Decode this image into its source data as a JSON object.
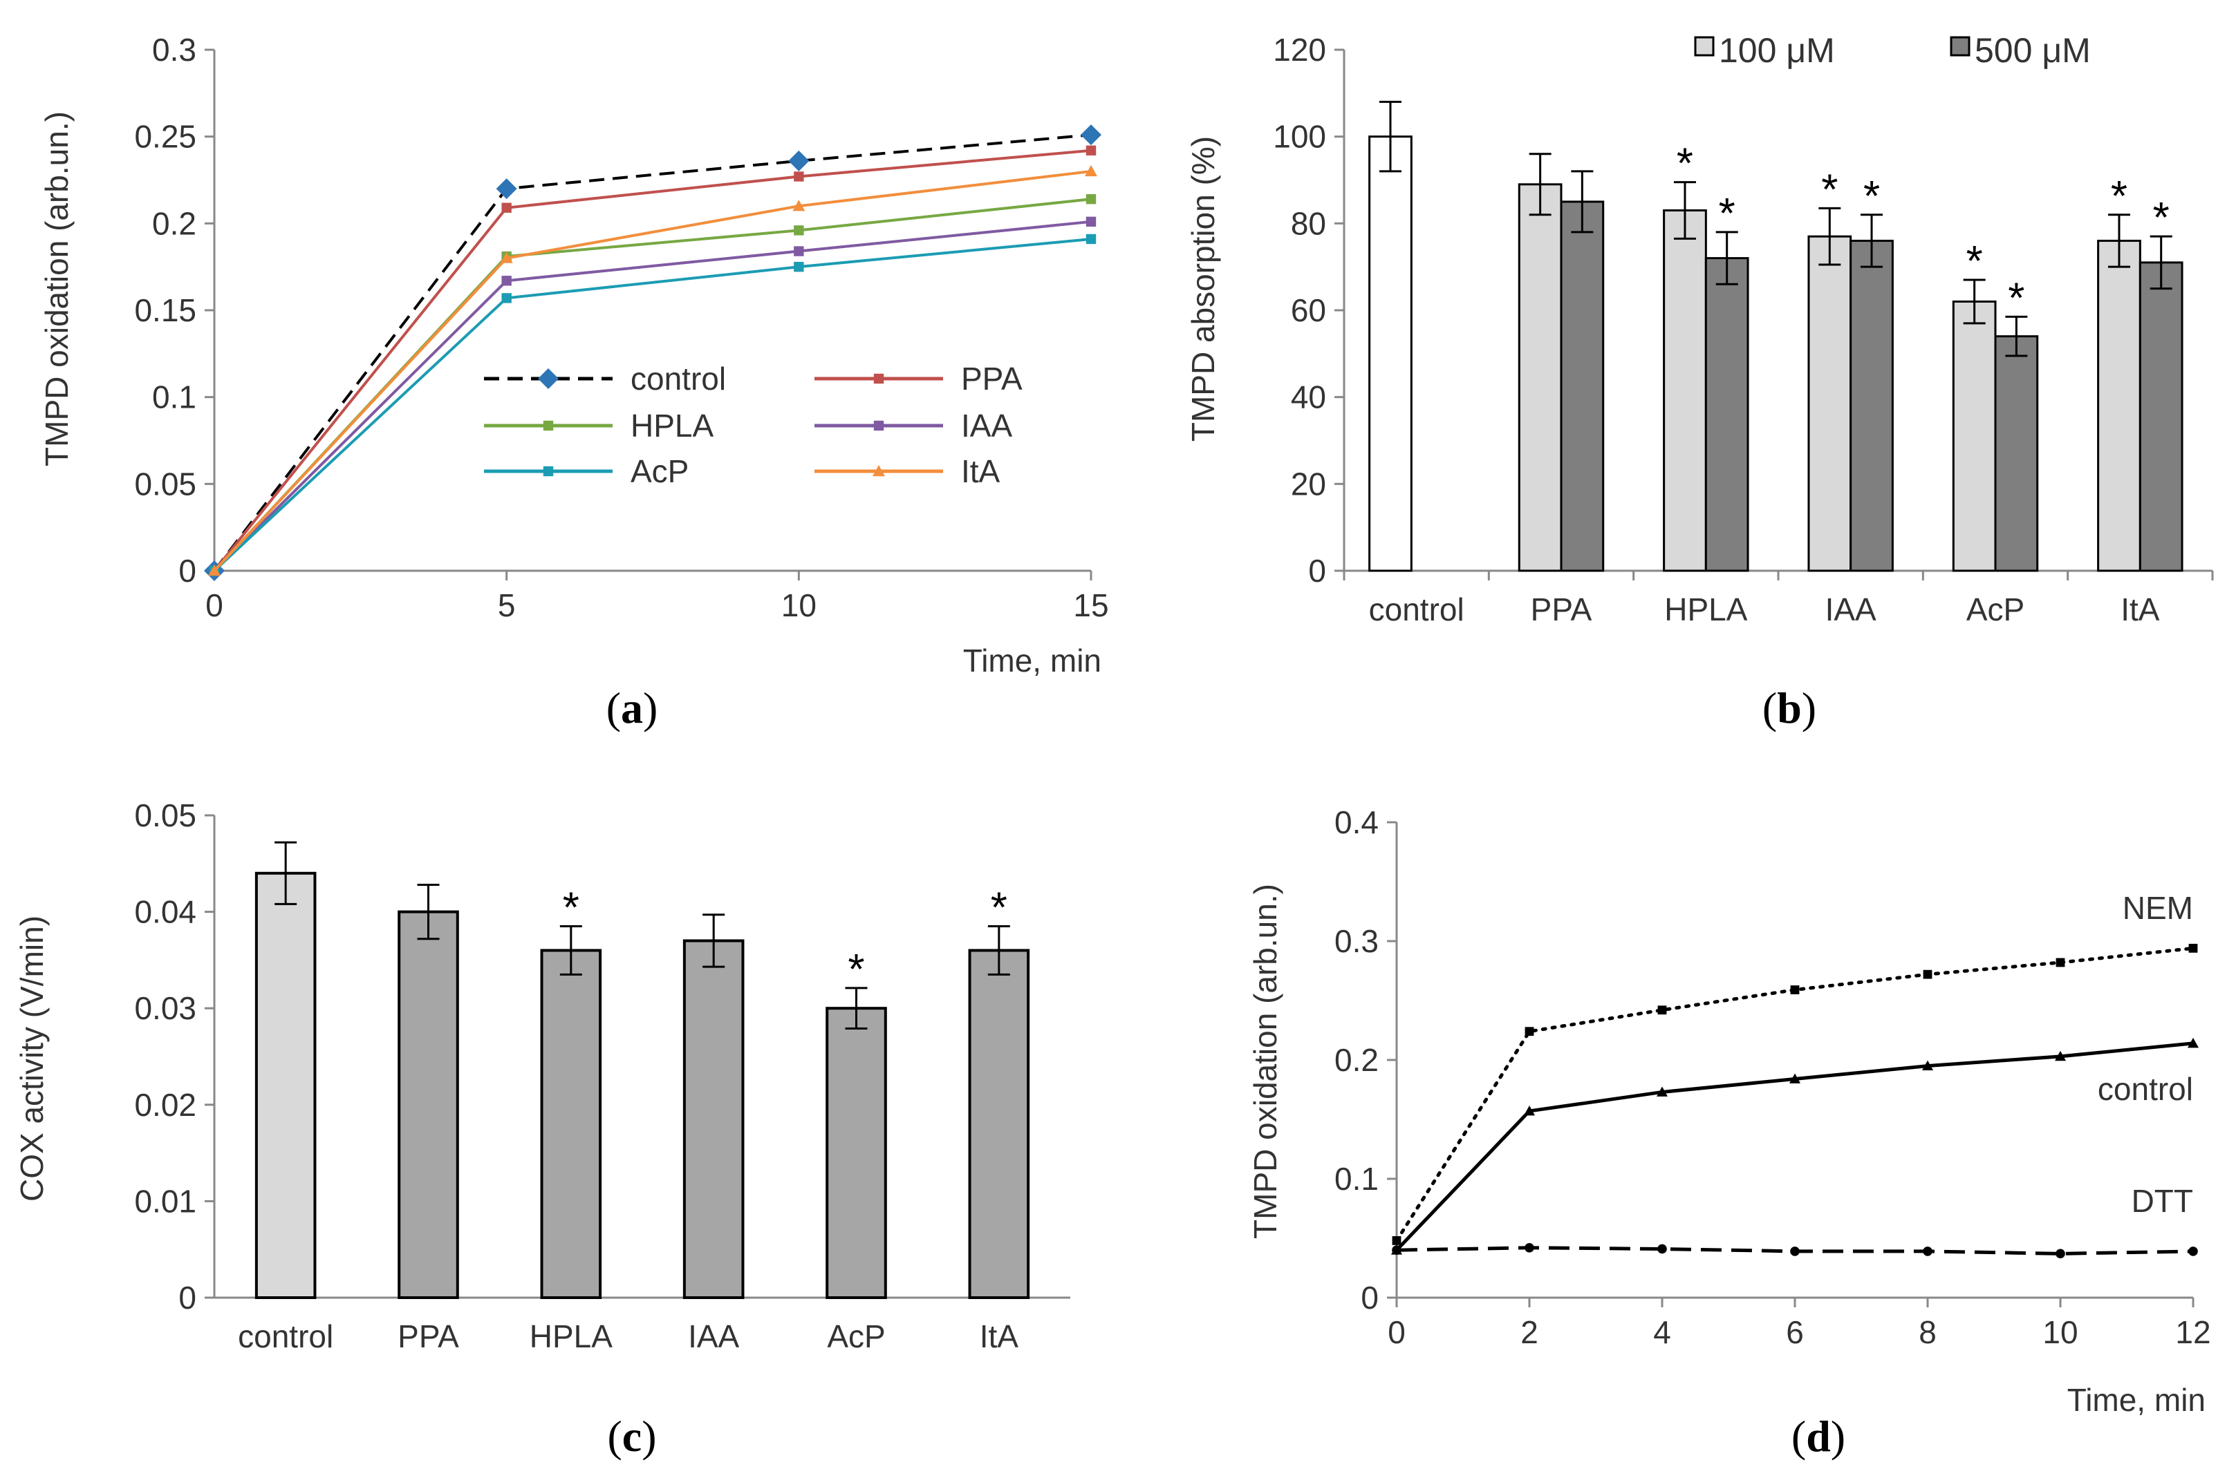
{
  "chart_data": [
    {
      "panel": "a",
      "type": "line",
      "panel_label": {
        "open": "(",
        "letter": "a",
        "close": ")"
      },
      "xlabel": "Time, min",
      "ylabel": "TMPD oxidation (arb.un.)",
      "xlim": [
        0,
        15
      ],
      "ylim": [
        0,
        0.3
      ],
      "xticks": [
        0,
        5,
        10,
        15
      ],
      "yticks": [
        0,
        0.05,
        0.1,
        0.15,
        0.2,
        0.25,
        0.3
      ],
      "x": [
        0,
        5,
        10,
        15
      ],
      "legend_position": "center",
      "series": [
        {
          "name": "control",
          "values": [
            0,
            0.22,
            0.236,
            0.251
          ],
          "color": "#000000",
          "dash": "dashed",
          "marker": "diamond",
          "marker_color": "#2e75b6"
        },
        {
          "name": "PPA",
          "values": [
            0,
            0.209,
            0.227,
            0.242
          ],
          "color": "#c0504d",
          "dash": "solid",
          "marker": "square"
        },
        {
          "name": "HPLA",
          "values": [
            0,
            0.181,
            0.196,
            0.214
          ],
          "color": "#77a843",
          "dash": "solid",
          "marker": "square"
        },
        {
          "name": "IAA",
          "values": [
            0,
            0.167,
            0.184,
            0.201
          ],
          "color": "#7f5aa2",
          "dash": "solid",
          "marker": "square"
        },
        {
          "name": "AcP",
          "values": [
            0,
            0.157,
            0.175,
            0.191
          ],
          "color": "#1b9cb3",
          "dash": "solid",
          "marker": "square"
        },
        {
          "name": "ItA",
          "values": [
            0,
            0.18,
            0.21,
            0.23
          ],
          "color": "#f28e3c",
          "dash": "solid",
          "marker": "triangle"
        }
      ]
    },
    {
      "panel": "b",
      "type": "bar",
      "panel_label": {
        "open": "(",
        "letter": "b",
        "close": ")"
      },
      "ylabel": "TMPD absorption (%)",
      "ylim": [
        0,
        120
      ],
      "yticks": [
        0,
        20,
        40,
        60,
        80,
        100,
        120
      ],
      "categories": [
        "control",
        "PPA",
        "HPLA",
        "IAA",
        "AcP",
        "ItA"
      ],
      "legend_position": "top-right",
      "control": {
        "value": 100,
        "error": 8,
        "color": "#ffffff"
      },
      "series": [
        {
          "name": "100 μM",
          "color": "#d9d9d9",
          "values": [
            null,
            89,
            83,
            77,
            62,
            76
          ],
          "errors": [
            null,
            7,
            6.5,
            6.5,
            5,
            6
          ],
          "significant": [
            false,
            false,
            true,
            true,
            true,
            true
          ]
        },
        {
          "name": "500 μM",
          "color": "#7f7f7f",
          "values": [
            null,
            85,
            72,
            76,
            54,
            71
          ],
          "errors": [
            null,
            7,
            6,
            6,
            4.5,
            6
          ],
          "significant": [
            false,
            false,
            true,
            true,
            true,
            true
          ]
        }
      ],
      "significance_mark": "*"
    },
    {
      "panel": "c",
      "type": "bar",
      "panel_label": {
        "open": "(",
        "letter": "c",
        "close": ")"
      },
      "ylabel": "COX activity (V/min)",
      "ylim": [
        0,
        0.05
      ],
      "yticks": [
        0,
        0.01,
        0.02,
        0.03,
        0.04,
        0.05
      ],
      "categories": [
        "control",
        "PPA",
        "HPLA",
        "IAA",
        "AcP",
        "ItA"
      ],
      "values": [
        0.044,
        0.04,
        0.036,
        0.037,
        0.03,
        0.036
      ],
      "errors": [
        0.0032,
        0.0028,
        0.0025,
        0.0027,
        0.0021,
        0.0025
      ],
      "significant": [
        false,
        false,
        true,
        false,
        true,
        true
      ],
      "colors": [
        "#d9d9d9",
        "#a6a6a6",
        "#a6a6a6",
        "#a6a6a6",
        "#a6a6a6",
        "#a6a6a6"
      ],
      "significance_mark": "*"
    },
    {
      "panel": "d",
      "type": "line",
      "panel_label": {
        "open": "(",
        "letter": "d",
        "close": ")"
      },
      "xlabel": "Time, min",
      "ylabel": "TMPD oxidation (arb.un.)",
      "xlim": [
        0,
        12
      ],
      "ylim": [
        0,
        0.4
      ],
      "xticks": [
        0,
        2,
        4,
        6,
        8,
        10,
        12
      ],
      "yticks": [
        0,
        0.1,
        0.2,
        0.3,
        0.4
      ],
      "x": [
        0,
        2,
        4,
        6,
        8,
        10,
        12
      ],
      "series": [
        {
          "name": "NEM",
          "values": [
            0.048,
            0.224,
            0.242,
            0.259,
            0.272,
            0.282,
            0.294
          ],
          "color": "#000000",
          "dash": "dotted",
          "marker": "square"
        },
        {
          "name": "control",
          "values": [
            0.04,
            0.157,
            0.173,
            0.184,
            0.195,
            0.203,
            0.214
          ],
          "color": "#000000",
          "dash": "solid",
          "marker": "triangle"
        },
        {
          "name": "DTT",
          "values": [
            0.04,
            0.042,
            0.041,
            0.039,
            0.039,
            0.037,
            0.039
          ],
          "color": "#000000",
          "dash": "longdash",
          "marker": "circle"
        }
      ]
    }
  ]
}
